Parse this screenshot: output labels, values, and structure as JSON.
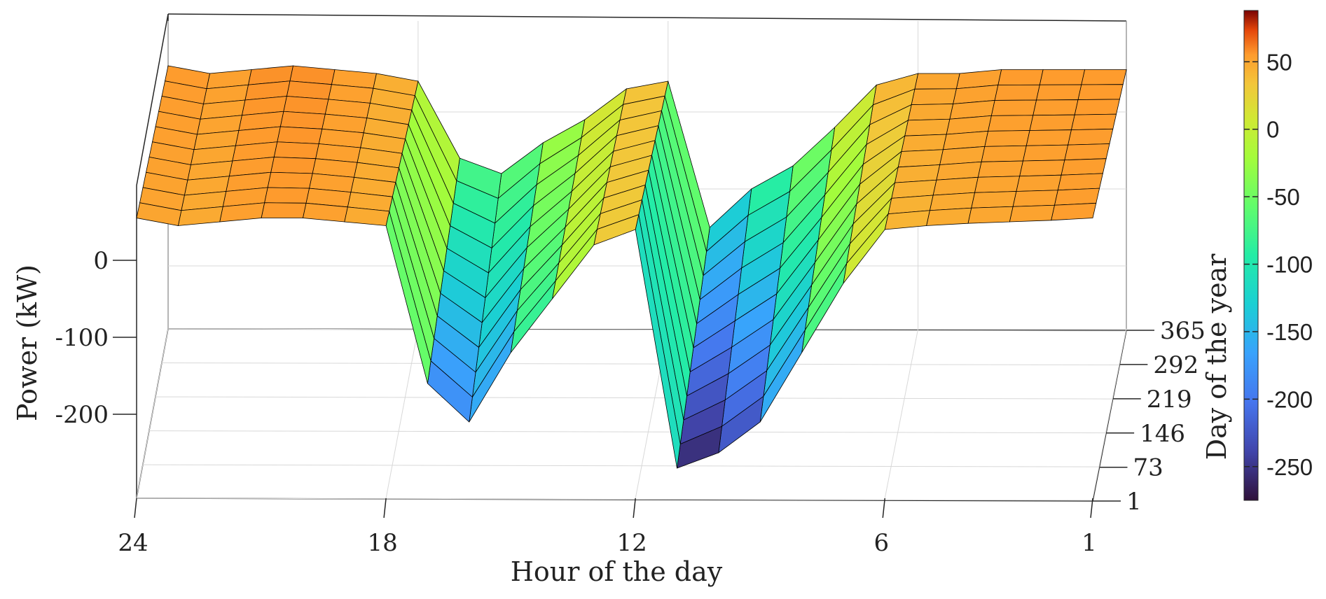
{
  "chart_data": {
    "type": "surface",
    "xlabel": "Hour of the day",
    "ylabel": "Day of the year",
    "zlabel": "Power (kW)",
    "colorbar_label": "Day of the year",
    "x_ticks": [
      "24",
      "18",
      "12",
      "6",
      "1"
    ],
    "x_tick_values": [
      24,
      18,
      12,
      6,
      1
    ],
    "y_ticks": [
      "1",
      "73",
      "146",
      "219",
      "292",
      "365"
    ],
    "y_tick_values": [
      1,
      73,
      146,
      219,
      292,
      365
    ],
    "z_ticks": [
      "0",
      "-100",
      "-200"
    ],
    "z_tick_values": [
      0,
      -100,
      -200
    ],
    "colorbar_ticks": [
      "50",
      "0",
      "-50",
      "-100",
      "-150",
      "-200",
      "-250"
    ],
    "colorbar_tick_values": [
      50,
      0,
      -50,
      -100,
      -150,
      -200,
      -250
    ],
    "colorbar_range": [
      -275,
      88
    ],
    "colormap": "turbo",
    "grid": true,
    "z_range": [
      -280,
      90
    ],
    "hours": [
      1,
      2,
      3,
      4,
      5,
      6,
      7,
      8,
      9,
      10,
      11,
      12,
      13,
      14,
      15,
      16,
      17,
      18,
      19,
      20,
      21,
      22,
      23,
      24
    ],
    "series": [
      {
        "name": "day 1",
        "values": [
          55,
          52,
          50,
          48,
          45,
          40,
          -30,
          -120,
          -210,
          -250,
          -270,
          40,
          20,
          -50,
          -120,
          -210,
          -160,
          45,
          50,
          55,
          55,
          50,
          45,
          55
        ]
      },
      {
        "name": "day 365",
        "values": [
          55,
          55,
          55,
          55,
          50,
          50,
          35,
          -20,
          -70,
          -100,
          -150,
          40,
          30,
          -10,
          -40,
          -80,
          -60,
          40,
          50,
          55,
          60,
          55,
          50,
          60
        ]
      }
    ]
  }
}
